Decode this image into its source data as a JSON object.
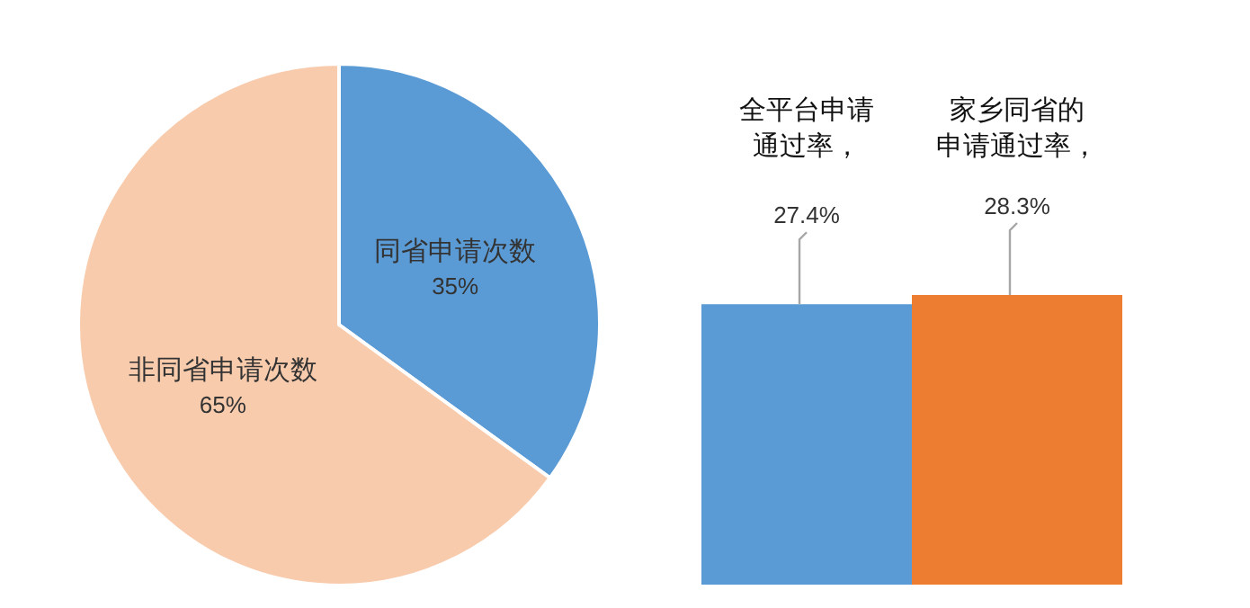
{
  "chart_data": [
    {
      "type": "pie",
      "categories": [
        "同省申请次数",
        "非同省申请次数"
      ],
      "values": [
        35,
        65
      ],
      "colors": [
        "#5b9bd5",
        "#f8cbad"
      ],
      "value_labels": [
        "35%",
        "65%"
      ]
    },
    {
      "type": "bar",
      "categories": [
        "全平台申请通过率",
        "家乡同省的申请通过率"
      ],
      "values": [
        27.4,
        28.3
      ],
      "annotations": [
        "，",
        "，"
      ],
      "colors": [
        "#5b9bd5",
        "#ed7d31"
      ],
      "value_labels": [
        "27.4%",
        "28.3%"
      ]
    }
  ]
}
